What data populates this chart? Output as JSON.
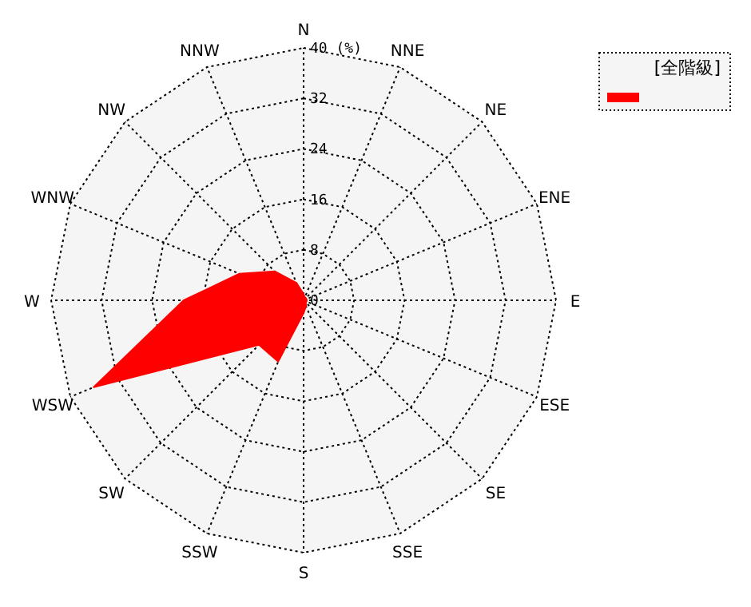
{
  "chart_data": {
    "type": "radar",
    "legend": "top right",
    "grid": true,
    "categories": [
      "N",
      "NNE",
      "NE",
      "ENE",
      "E",
      "ESE",
      "SE",
      "SSE",
      "S",
      "SSW",
      "SW",
      "WSW",
      "W",
      "WNW",
      "NW",
      "NNW"
    ],
    "series": [
      {
        "name": "[全階級]",
        "color": "#ff0000",
        "values": [
          1,
          0.5,
          0.5,
          0.5,
          0.5,
          0.5,
          0.5,
          1,
          2,
          10.5,
          10,
          36,
          19,
          11,
          6.5,
          3
        ]
      }
    ],
    "ylim": [
      0,
      40
    ],
    "yticks": [
      0,
      8,
      16,
      24,
      32,
      {
        "value": 40,
        "label": "40 (%)"
      }
    ]
  }
}
